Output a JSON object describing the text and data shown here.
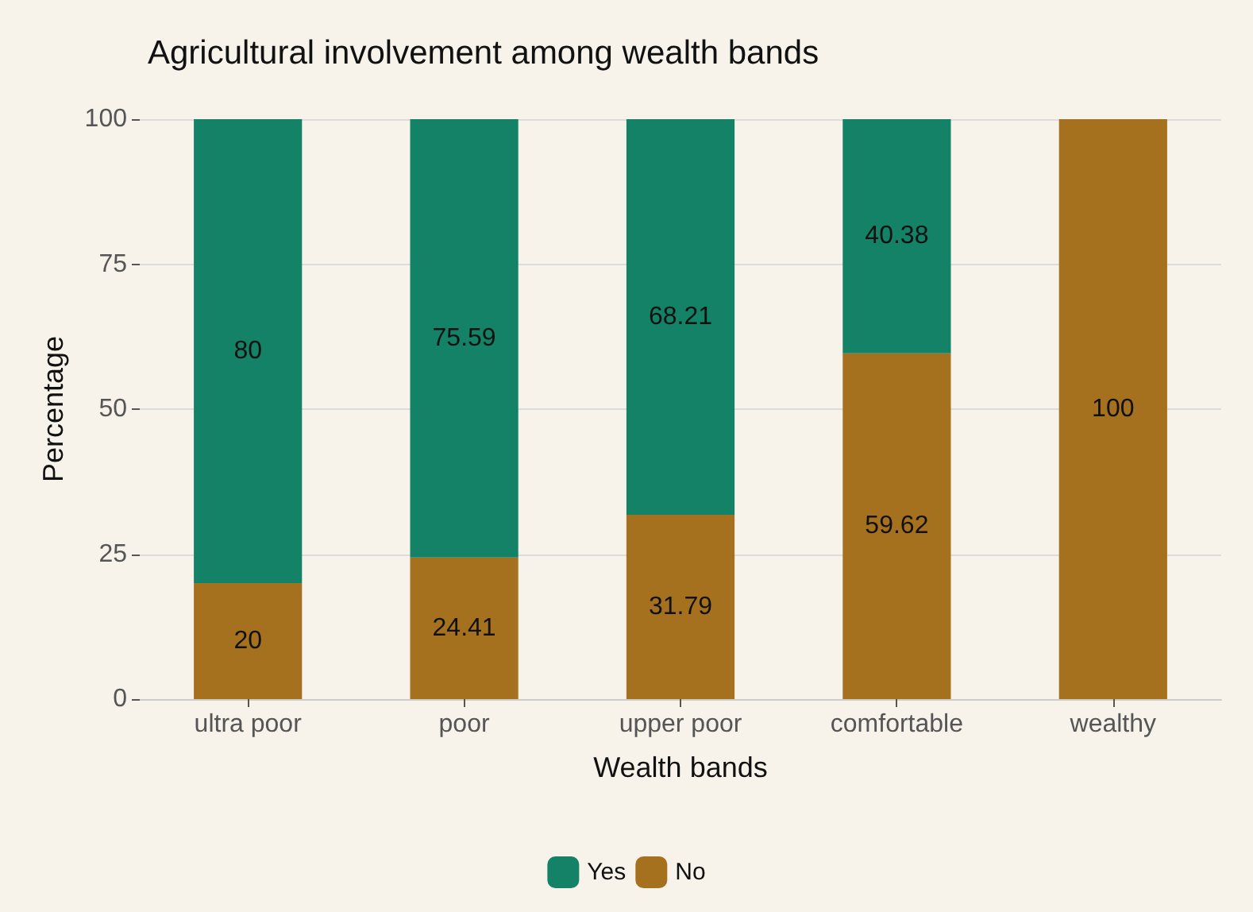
{
  "chart_data": {
    "type": "bar",
    "title": "Agricultural involvement among wealth bands",
    "xlabel": "Wealth bands",
    "ylabel": "Percentage",
    "categories": [
      "ultra poor",
      "poor",
      "upper poor",
      "comfortable",
      "wealthy"
    ],
    "stacked": true,
    "series": [
      {
        "name": "No",
        "color": "#a6711f",
        "values": [
          20,
          24.41,
          31.79,
          59.62,
          100
        ],
        "value_labels": [
          "20",
          "24.41",
          "31.79",
          "59.62",
          "100"
        ]
      },
      {
        "name": "Yes",
        "color": "#138266",
        "values": [
          80,
          75.59,
          68.21,
          40.38,
          0
        ],
        "value_labels": [
          "80",
          "75.59",
          "68.21",
          "40.38",
          null
        ]
      }
    ],
    "ylim": [
      0,
      100
    ],
    "yticks": [
      0,
      25,
      50,
      75,
      100
    ],
    "grid": "y",
    "legend": "bottom"
  }
}
